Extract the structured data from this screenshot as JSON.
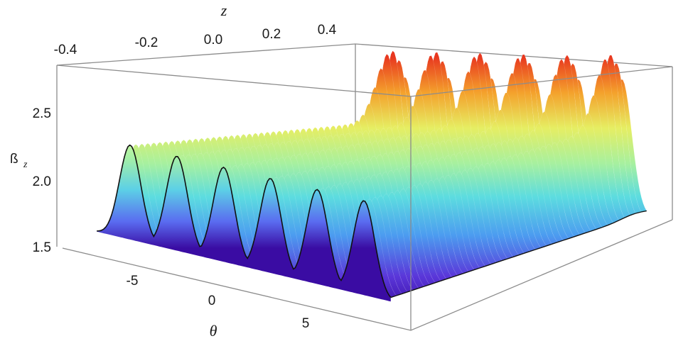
{
  "chart_data": {
    "type": "surface3d",
    "title": "",
    "axes": {
      "x": {
        "label": "z",
        "ticks": [
          "-0.4",
          "-0.2",
          "0.0",
          "0.2",
          "0.4"
        ],
        "range": [
          -0.4,
          0.6
        ]
      },
      "y": {
        "label": "θ",
        "ticks": [
          "-5",
          "0",
          "5"
        ],
        "range": [
          -10,
          10
        ]
      },
      "v": {
        "label": "ß",
        "label_sub": "z",
        "ticks": [
          "1.5",
          "2.0",
          "2.5"
        ],
        "range": [
          1.5,
          2.8
        ]
      }
    },
    "surface": {
      "baseline": 1.62,
      "ridge_peak": 2.27,
      "peak_positions_theta": [
        -6.8,
        -4.0,
        -1.2,
        1.6,
        4.4,
        7.2
      ],
      "peak_heights": [
        2.75,
        2.75,
        2.75,
        2.75,
        2.75,
        2.76
      ],
      "peak_location_z": 0.55,
      "colormap": [
        "#3a0ca3",
        "#4361ee",
        "#4cc9f0",
        "#90f0a0",
        "#e8f060",
        "#f4a12c",
        "#e8371f"
      ]
    },
    "grid": false,
    "box": true
  }
}
